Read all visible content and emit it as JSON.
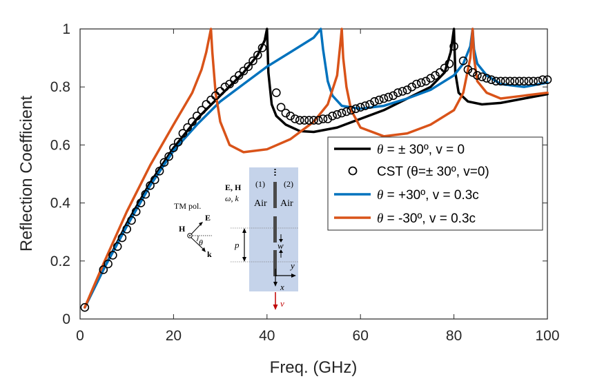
{
  "chart_data": {
    "type": "line",
    "xlabel": "Freq. (GHz)",
    "ylabel": "Reflection Coefficient",
    "xlim": [
      0,
      100
    ],
    "ylim": [
      0,
      1
    ],
    "xticks": [
      0,
      20,
      40,
      60,
      80,
      100
    ],
    "yticks": [
      0,
      0.2,
      0.4,
      0.6,
      0.8,
      1
    ],
    "xtick_labels": [
      "0",
      "20",
      "40",
      "60",
      "80",
      "100"
    ],
    "ytick_labels": [
      "0",
      "0.2",
      "0.4",
      "0.6",
      "0.8",
      "1"
    ],
    "grid": false,
    "legend_position": "center-right",
    "series": [
      {
        "name": "θ = ± 30º, v = 0",
        "legend_theta": "θ",
        "legend_rest": " = ± 30º, v = 0",
        "style": "line",
        "color": "#000000",
        "points": [
          [
            1,
            0.04
          ],
          [
            5,
            0.17
          ],
          [
            10,
            0.33
          ],
          [
            15,
            0.47
          ],
          [
            20,
            0.59
          ],
          [
            25,
            0.69
          ],
          [
            30,
            0.77
          ],
          [
            35,
            0.85
          ],
          [
            38,
            0.91
          ],
          [
            39.5,
            0.96
          ],
          [
            40,
            1.0
          ],
          [
            40.3,
            0.85
          ],
          [
            41,
            0.74
          ],
          [
            42,
            0.7
          ],
          [
            44,
            0.67
          ],
          [
            47,
            0.648
          ],
          [
            50,
            0.645
          ],
          [
            55,
            0.66
          ],
          [
            60,
            0.69
          ],
          [
            65,
            0.72
          ],
          [
            70,
            0.76
          ],
          [
            75,
            0.8
          ],
          [
            78,
            0.85
          ],
          [
            79.3,
            0.92
          ],
          [
            80,
            1.0
          ],
          [
            80.3,
            0.85
          ],
          [
            81,
            0.78
          ],
          [
            83,
            0.75
          ],
          [
            86,
            0.74
          ],
          [
            90,
            0.745
          ],
          [
            95,
            0.76
          ],
          [
            100,
            0.775
          ]
        ]
      },
      {
        "name": "CST (θ=± 30º, v=0)",
        "legend_text": "CST (θ=± 30º, v=0)",
        "style": "markers",
        "color": "#000000",
        "points": [
          [
            1,
            0.04
          ],
          [
            5,
            0.17
          ],
          [
            6,
            0.19
          ],
          [
            7,
            0.22
          ],
          [
            8,
            0.25
          ],
          [
            9,
            0.28
          ],
          [
            10,
            0.31
          ],
          [
            11,
            0.34
          ],
          [
            12,
            0.37
          ],
          [
            13,
            0.4
          ],
          [
            14,
            0.43
          ],
          [
            15,
            0.46
          ],
          [
            16,
            0.48
          ],
          [
            17,
            0.51
          ],
          [
            18,
            0.54
          ],
          [
            19,
            0.56
          ],
          [
            20,
            0.59
          ],
          [
            21,
            0.61
          ],
          [
            22,
            0.64
          ],
          [
            23,
            0.66
          ],
          [
            24,
            0.68
          ],
          [
            25,
            0.7
          ],
          [
            26,
            0.72
          ],
          [
            27,
            0.74
          ],
          [
            28,
            0.755
          ],
          [
            29,
            0.77
          ],
          [
            30,
            0.785
          ],
          [
            31,
            0.8
          ],
          [
            32,
            0.81
          ],
          [
            33,
            0.825
          ],
          [
            34,
            0.84
          ],
          [
            35,
            0.855
          ],
          [
            36,
            0.87
          ],
          [
            37,
            0.89
          ],
          [
            38,
            0.91
          ],
          [
            39,
            0.935
          ],
          [
            42,
            0.78
          ],
          [
            43,
            0.73
          ],
          [
            44,
            0.71
          ],
          [
            45,
            0.7
          ],
          [
            46,
            0.69
          ],
          [
            47,
            0.685
          ],
          [
            48,
            0.685
          ],
          [
            49,
            0.685
          ],
          [
            50,
            0.685
          ],
          [
            51,
            0.685
          ],
          [
            52,
            0.69
          ],
          [
            53,
            0.69
          ],
          [
            54,
            0.7
          ],
          [
            55,
            0.705
          ],
          [
            56,
            0.71
          ],
          [
            57,
            0.715
          ],
          [
            58,
            0.72
          ],
          [
            59,
            0.725
          ],
          [
            60,
            0.73
          ],
          [
            61,
            0.735
          ],
          [
            62,
            0.74
          ],
          [
            63,
            0.75
          ],
          [
            64,
            0.755
          ],
          [
            65,
            0.76
          ],
          [
            66,
            0.765
          ],
          [
            67,
            0.77
          ],
          [
            68,
            0.78
          ],
          [
            69,
            0.785
          ],
          [
            70,
            0.79
          ],
          [
            71,
            0.8
          ],
          [
            72,
            0.81
          ],
          [
            73,
            0.815
          ],
          [
            74,
            0.82
          ],
          [
            75,
            0.83
          ],
          [
            76,
            0.84
          ],
          [
            77,
            0.85
          ],
          [
            78,
            0.865
          ],
          [
            79,
            0.88
          ],
          [
            80,
            0.94
          ],
          [
            82,
            0.89
          ],
          [
            83,
            0.86
          ],
          [
            84,
            0.85
          ],
          [
            85,
            0.84
          ],
          [
            86,
            0.835
          ],
          [
            87,
            0.83
          ],
          [
            88,
            0.825
          ],
          [
            89,
            0.82
          ],
          [
            90,
            0.82
          ],
          [
            91,
            0.82
          ],
          [
            92,
            0.82
          ],
          [
            93,
            0.82
          ],
          [
            94,
            0.82
          ],
          [
            95,
            0.82
          ],
          [
            96,
            0.82
          ],
          [
            97,
            0.82
          ],
          [
            98,
            0.82
          ],
          [
            99,
            0.825
          ],
          [
            100,
            0.825
          ]
        ]
      },
      {
        "name": "θ = +30º, v = 0.3c",
        "legend_theta": "θ",
        "legend_rest": " = +30º, v = 0.3c",
        "style": "line",
        "color": "#0072BD",
        "points": [
          [
            1,
            0.04
          ],
          [
            5,
            0.17
          ],
          [
            10,
            0.32
          ],
          [
            15,
            0.46
          ],
          [
            20,
            0.58
          ],
          [
            25,
            0.67
          ],
          [
            30,
            0.75
          ],
          [
            35,
            0.81
          ],
          [
            40,
            0.87
          ],
          [
            45,
            0.92
          ],
          [
            50,
            0.97
          ],
          [
            51.5,
            1.0
          ],
          [
            52,
            0.93
          ],
          [
            53,
            0.82
          ],
          [
            54,
            0.77
          ],
          [
            56,
            0.735
          ],
          [
            60,
            0.725
          ],
          [
            65,
            0.735
          ],
          [
            70,
            0.76
          ],
          [
            75,
            0.79
          ],
          [
            80,
            0.84
          ],
          [
            82,
            0.88
          ],
          [
            83.5,
            0.94
          ],
          [
            84,
            1.0
          ],
          [
            84.3,
            0.93
          ],
          [
            85,
            0.88
          ],
          [
            87,
            0.84
          ],
          [
            90,
            0.81
          ],
          [
            95,
            0.8
          ],
          [
            100,
            0.815
          ]
        ]
      },
      {
        "name": "θ = -30º, v = 0.3c",
        "legend_theta": "θ",
        "legend_rest": " = -30º, v = 0.3c",
        "style": "line",
        "color": "#D95319",
        "points": [
          [
            1,
            0.04
          ],
          [
            5,
            0.19
          ],
          [
            10,
            0.37
          ],
          [
            15,
            0.53
          ],
          [
            20,
            0.67
          ],
          [
            24,
            0.78
          ],
          [
            26,
            0.86
          ],
          [
            27,
            0.92
          ],
          [
            28,
            1.0
          ],
          [
            28.3,
            0.92
          ],
          [
            29,
            0.78
          ],
          [
            30,
            0.68
          ],
          [
            32,
            0.6
          ],
          [
            35,
            0.575
          ],
          [
            40,
            0.585
          ],
          [
            45,
            0.62
          ],
          [
            50,
            0.68
          ],
          [
            53,
            0.74
          ],
          [
            55,
            0.84
          ],
          [
            55.7,
            0.95
          ],
          [
            56,
            1.0
          ],
          [
            56.3,
            0.9
          ],
          [
            57,
            0.8
          ],
          [
            58,
            0.72
          ],
          [
            60,
            0.66
          ],
          [
            65,
            0.63
          ],
          [
            70,
            0.64
          ],
          [
            75,
            0.67
          ],
          [
            80,
            0.72
          ],
          [
            82,
            0.78
          ],
          [
            83.5,
            0.9
          ],
          [
            84,
            1.0
          ],
          [
            84.3,
            0.9
          ],
          [
            85,
            0.82
          ],
          [
            87,
            0.78
          ],
          [
            90,
            0.76
          ],
          [
            95,
            0.77
          ],
          [
            100,
            0.78
          ]
        ]
      }
    ]
  },
  "inset": {
    "tm_pol": "TM pol.",
    "H": "H",
    "E": "E",
    "k": "k",
    "theta": "θ",
    "EH": "E, H",
    "omega_k": "ω, k",
    "medium1": "(1)",
    "medium2": "(2)",
    "air1": "Air",
    "air2": "Air",
    "p": "p",
    "w": "w",
    "y": "y",
    "x": "x",
    "v": "v",
    "panel_color": "#c5d3ea",
    "velocity_color": "#c00000"
  }
}
